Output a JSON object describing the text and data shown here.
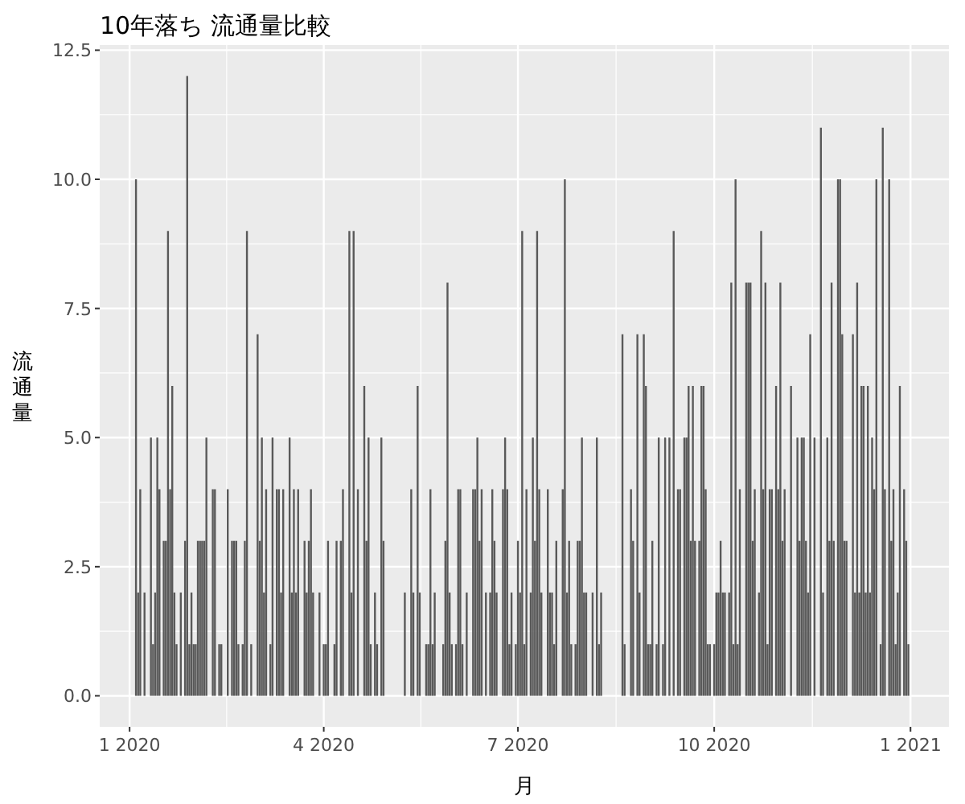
{
  "chart_data": {
    "type": "bar",
    "title": "10年落ち 流通量比較",
    "xlabel": "月",
    "ylabel": "流通量",
    "color": "#595959",
    "grid": true,
    "xlim": [
      "2019-12-18",
      "2021-01-19"
    ],
    "xticks": [
      {
        "value": "2020-01-01",
        "label": "1 2020"
      },
      {
        "value": "2020-04-01",
        "label": "4 2020"
      },
      {
        "value": "2020-07-01",
        "label": "7 2020"
      },
      {
        "value": "2020-10-01",
        "label": "10 2020"
      },
      {
        "value": "2021-01-01",
        "label": "1 2021"
      }
    ],
    "ylim": [
      -0.6,
      12.6
    ],
    "yticks": [
      {
        "value": 0,
        "label": "0.0"
      },
      {
        "value": 2.5,
        "label": "2.5"
      },
      {
        "value": 5,
        "label": "5.0"
      },
      {
        "value": 7.5,
        "label": "7.5"
      },
      {
        "value": 10,
        "label": "10.0"
      },
      {
        "value": 12.5,
        "label": "12.5"
      }
    ],
    "x": [
      "2020-01-04",
      "2020-01-05",
      "2020-01-06",
      "2020-01-08",
      "2020-01-11",
      "2020-01-12",
      "2020-01-13",
      "2020-01-14",
      "2020-01-15",
      "2020-01-17",
      "2020-01-18",
      "2020-01-19",
      "2020-01-20",
      "2020-01-21",
      "2020-01-22",
      "2020-01-23",
      "2020-01-25",
      "2020-01-27",
      "2020-01-28",
      "2020-01-29",
      "2020-01-30",
      "2020-01-31",
      "2020-02-01",
      "2020-02-02",
      "2020-02-03",
      "2020-02-04",
      "2020-02-05",
      "2020-02-06",
      "2020-02-09",
      "2020-02-10",
      "2020-02-12",
      "2020-02-13",
      "2020-02-16",
      "2020-02-18",
      "2020-02-19",
      "2020-02-20",
      "2020-02-21",
      "2020-02-23",
      "2020-02-24",
      "2020-02-25",
      "2020-02-27",
      "2020-03-01",
      "2020-03-02",
      "2020-03-03",
      "2020-03-04",
      "2020-03-05",
      "2020-03-07",
      "2020-03-08",
      "2020-03-10",
      "2020-03-11",
      "2020-03-12",
      "2020-03-13",
      "2020-03-16",
      "2020-03-17",
      "2020-03-18",
      "2020-03-19",
      "2020-03-20",
      "2020-03-23",
      "2020-03-24",
      "2020-03-25",
      "2020-03-26",
      "2020-03-27",
      "2020-03-30",
      "2020-04-01",
      "2020-04-02",
      "2020-04-03",
      "2020-04-06",
      "2020-04-07",
      "2020-04-09",
      "2020-04-10",
      "2020-04-13",
      "2020-04-14",
      "2020-04-15",
      "2020-04-17",
      "2020-04-20",
      "2020-04-21",
      "2020-04-22",
      "2020-04-23",
      "2020-04-25",
      "2020-04-26",
      "2020-04-28",
      "2020-04-29",
      "2020-05-09",
      "2020-05-12",
      "2020-05-13",
      "2020-05-15",
      "2020-05-16",
      "2020-05-19",
      "2020-05-20",
      "2020-05-21",
      "2020-05-22",
      "2020-05-23",
      "2020-05-27",
      "2020-05-28",
      "2020-05-29",
      "2020-05-30",
      "2020-05-31",
      "2020-06-02",
      "2020-06-03",
      "2020-06-04",
      "2020-06-05",
      "2020-06-07",
      "2020-06-10",
      "2020-06-11",
      "2020-06-12",
      "2020-06-13",
      "2020-06-14",
      "2020-06-16",
      "2020-06-18",
      "2020-06-19",
      "2020-06-20",
      "2020-06-21",
      "2020-06-24",
      "2020-06-25",
      "2020-06-26",
      "2020-06-27",
      "2020-06-28",
      "2020-06-30",
      "2020-07-01",
      "2020-07-02",
      "2020-07-03",
      "2020-07-04",
      "2020-07-05",
      "2020-07-07",
      "2020-07-08",
      "2020-07-09",
      "2020-07-10",
      "2020-07-11",
      "2020-07-12",
      "2020-07-15",
      "2020-07-16",
      "2020-07-17",
      "2020-07-18",
      "2020-07-19",
      "2020-07-22",
      "2020-07-23",
      "2020-07-24",
      "2020-07-25",
      "2020-07-26",
      "2020-07-28",
      "2020-07-29",
      "2020-07-30",
      "2020-07-31",
      "2020-08-01",
      "2020-08-02",
      "2020-08-05",
      "2020-08-07",
      "2020-08-08",
      "2020-08-09",
      "2020-08-19",
      "2020-08-20",
      "2020-08-23",
      "2020-08-24",
      "2020-08-26",
      "2020-08-27",
      "2020-08-29",
      "2020-08-30",
      "2020-08-31",
      "2020-09-01",
      "2020-09-02",
      "2020-09-04",
      "2020-09-05",
      "2020-09-07",
      "2020-09-08",
      "2020-09-10",
      "2020-09-12",
      "2020-09-14",
      "2020-09-15",
      "2020-09-17",
      "2020-09-18",
      "2020-09-19",
      "2020-09-20",
      "2020-09-21",
      "2020-09-22",
      "2020-09-24",
      "2020-09-25",
      "2020-09-26",
      "2020-09-27",
      "2020-09-28",
      "2020-09-29",
      "2020-10-01",
      "2020-10-02",
      "2020-10-03",
      "2020-10-04",
      "2020-10-05",
      "2020-10-06",
      "2020-10-08",
      "2020-10-09",
      "2020-10-10",
      "2020-10-11",
      "2020-10-12",
      "2020-10-13",
      "2020-10-16",
      "2020-10-17",
      "2020-10-18",
      "2020-10-19",
      "2020-10-20",
      "2020-10-22",
      "2020-10-23",
      "2020-10-24",
      "2020-10-25",
      "2020-10-26",
      "2020-10-27",
      "2020-10-28",
      "2020-10-30",
      "2020-10-31",
      "2020-11-01",
      "2020-11-02",
      "2020-11-03",
      "2020-11-06",
      "2020-11-09",
      "2020-11-10",
      "2020-11-11",
      "2020-11-12",
      "2020-11-13",
      "2020-11-14",
      "2020-11-15",
      "2020-11-17",
      "2020-11-20",
      "2020-11-21",
      "2020-11-23",
      "2020-11-24",
      "2020-11-25",
      "2020-11-26",
      "2020-11-28",
      "2020-11-29",
      "2020-11-30",
      "2020-12-01",
      "2020-12-02",
      "2020-12-05",
      "2020-12-06",
      "2020-12-07",
      "2020-12-08",
      "2020-12-09",
      "2020-12-10",
      "2020-12-11",
      "2020-12-12",
      "2020-12-13",
      "2020-12-14",
      "2020-12-15",
      "2020-12-16",
      "2020-12-18",
      "2020-12-19",
      "2020-12-20",
      "2020-12-22",
      "2020-12-23",
      "2020-12-24",
      "2020-12-25",
      "2020-12-26",
      "2020-12-27",
      "2020-12-29",
      "2020-12-30",
      "2020-12-31"
    ],
    "values": [
      10,
      2,
      4,
      2,
      5,
      1,
      2,
      5,
      4,
      3,
      3,
      9,
      4,
      6,
      2,
      1,
      2,
      3,
      12,
      1,
      2,
      1,
      1,
      3,
      3,
      3,
      3,
      5,
      4,
      4,
      1,
      1,
      4,
      3,
      3,
      3,
      1,
      1,
      3,
      9,
      1,
      7,
      3,
      5,
      2,
      4,
      1,
      5,
      4,
      4,
      2,
      4,
      5,
      2,
      4,
      2,
      4,
      3,
      2,
      3,
      4,
      2,
      2,
      1,
      1,
      3,
      1,
      3,
      3,
      4,
      9,
      2,
      9,
      4,
      6,
      3,
      5,
      1,
      2,
      1,
      5,
      3,
      2,
      4,
      2,
      6,
      2,
      1,
      1,
      4,
      1,
      2,
      1,
      3,
      8,
      2,
      1,
      1,
      4,
      4,
      1,
      2,
      4,
      4,
      5,
      3,
      4,
      2,
      2,
      4,
      3,
      2,
      4,
      5,
      4,
      1,
      2,
      1,
      3,
      2,
      9,
      1,
      4,
      2,
      5,
      3,
      9,
      4,
      2,
      4,
      2,
      2,
      1,
      3,
      4,
      10,
      2,
      3,
      1,
      1,
      3,
      3,
      5,
      2,
      2,
      2,
      5,
      1,
      2,
      7,
      1,
      4,
      3,
      7,
      2,
      7,
      6,
      1,
      1,
      3,
      1,
      5,
      1,
      5,
      5,
      9,
      4,
      4,
      5,
      5,
      6,
      3,
      6,
      3,
      3,
      6,
      6,
      4,
      1,
      1,
      1,
      2,
      2,
      3,
      2,
      2,
      2,
      8,
      1,
      10,
      1,
      4,
      8,
      8,
      8,
      3,
      4,
      2,
      9,
      4,
      8,
      1,
      4,
      4,
      6,
      4,
      8,
      3,
      4,
      6,
      5,
      3,
      5,
      5,
      3,
      2,
      7,
      5,
      11,
      2,
      5,
      3,
      8,
      3,
      10,
      10,
      7,
      3,
      3,
      7,
      2,
      8,
      2,
      6,
      6,
      2,
      6,
      2,
      5,
      4,
      10,
      1,
      11,
      4,
      10,
      3,
      4,
      1,
      2,
      6,
      4,
      3,
      1
    ]
  }
}
